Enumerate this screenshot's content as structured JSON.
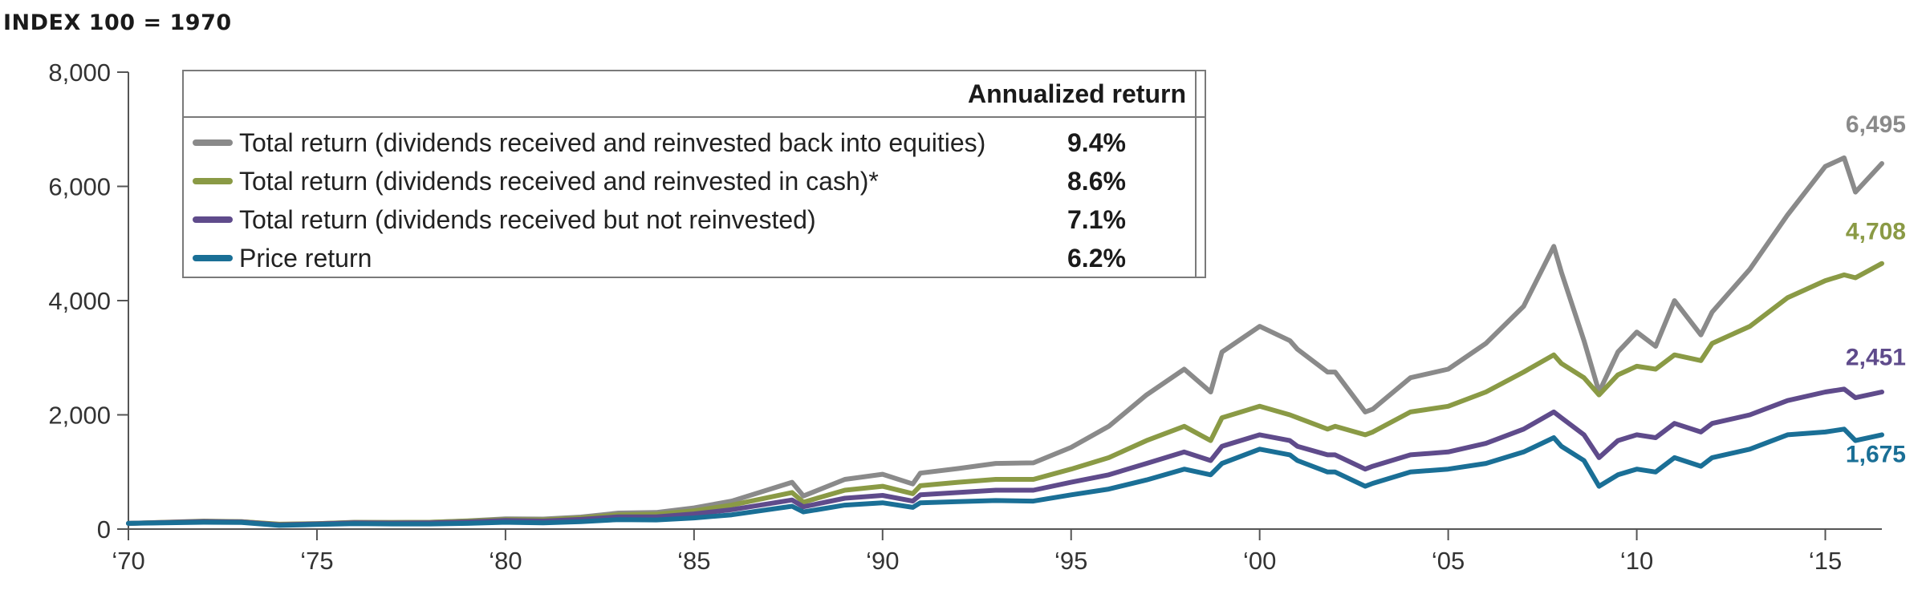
{
  "chart_data": {
    "type": "line",
    "title": "",
    "subtitle": "INDEX 100 = 1970",
    "xlabel": "",
    "ylabel": "",
    "xlim": [
      1970,
      2016.5
    ],
    "ylim": [
      0,
      8000
    ],
    "y_ticks": [
      0,
      2000,
      4000,
      6000,
      8000
    ],
    "y_tick_labels": [
      "0",
      "2,000",
      "4,000",
      "6,000",
      "8,000"
    ],
    "x_ticks": [
      1970,
      1975,
      1980,
      1985,
      1990,
      1995,
      2000,
      2005,
      2010,
      2015
    ],
    "x_tick_labels": [
      "‘70",
      "‘75",
      "‘80",
      "‘85",
      "‘90",
      "‘95",
      "‘00",
      "‘05",
      "‘10",
      "‘15"
    ],
    "grid": false,
    "legend": {
      "placement": "top-left",
      "header": "Annualized return"
    },
    "series": [
      {
        "name": "Total return (dividends received and reinvested back into equities)",
        "annualized_return": "9.4%",
        "end_label": "6,495",
        "color": "#8a8a8a",
        "points": [
          [
            1970,
            100
          ],
          [
            1972,
            140
          ],
          [
            1973,
            130
          ],
          [
            1974,
            80
          ],
          [
            1975,
            95
          ],
          [
            1976,
            120
          ],
          [
            1977,
            115
          ],
          [
            1978,
            120
          ],
          [
            1979,
            145
          ],
          [
            1980,
            180
          ],
          [
            1981,
            175
          ],
          [
            1982,
            210
          ],
          [
            1983,
            280
          ],
          [
            1984,
            290
          ],
          [
            1985,
            370
          ],
          [
            1986,
            490
          ],
          [
            1987.6,
            820
          ],
          [
            1987.9,
            580
          ],
          [
            1989,
            870
          ],
          [
            1990,
            960
          ],
          [
            1990.8,
            790
          ],
          [
            1991,
            980
          ],
          [
            1992,
            1060
          ],
          [
            1993,
            1150
          ],
          [
            1994,
            1160
          ],
          [
            1995,
            1430
          ],
          [
            1996,
            1800
          ],
          [
            1997,
            2350
          ],
          [
            1998,
            2800
          ],
          [
            1998.7,
            2400
          ],
          [
            1999,
            3100
          ],
          [
            2000,
            3550
          ],
          [
            2000.8,
            3300
          ],
          [
            2001,
            3150
          ],
          [
            2001.8,
            2750
          ],
          [
            2002,
            2750
          ],
          [
            2002.8,
            2050
          ],
          [
            2003,
            2100
          ],
          [
            2004,
            2650
          ],
          [
            2005,
            2800
          ],
          [
            2006,
            3250
          ],
          [
            2007,
            3900
          ],
          [
            2007.8,
            4950
          ],
          [
            2008,
            4500
          ],
          [
            2008.6,
            3300
          ],
          [
            2009,
            2400
          ],
          [
            2009.5,
            3100
          ],
          [
            2010,
            3450
          ],
          [
            2010.5,
            3200
          ],
          [
            2011,
            4000
          ],
          [
            2011.7,
            3400
          ],
          [
            2012,
            3800
          ],
          [
            2013,
            4550
          ],
          [
            2014,
            5500
          ],
          [
            2015,
            6350
          ],
          [
            2015.5,
            6500
          ],
          [
            2015.8,
            5900
          ],
          [
            2016.5,
            6400
          ]
        ]
      },
      {
        "name": "Total return (dividends received and reinvested in cash)*",
        "annualized_return": "8.6%",
        "end_label": "4,708",
        "color": "#8a9a45",
        "points": [
          [
            1970,
            100
          ],
          [
            1972,
            135
          ],
          [
            1973,
            130
          ],
          [
            1974,
            85
          ],
          [
            1975,
            95
          ],
          [
            1976,
            115
          ],
          [
            1977,
            115
          ],
          [
            1978,
            120
          ],
          [
            1979,
            140
          ],
          [
            1980,
            165
          ],
          [
            1981,
            160
          ],
          [
            1982,
            195
          ],
          [
            1983,
            250
          ],
          [
            1984,
            260
          ],
          [
            1985,
            320
          ],
          [
            1986,
            420
          ],
          [
            1987.6,
            640
          ],
          [
            1987.9,
            470
          ],
          [
            1989,
            680
          ],
          [
            1990,
            750
          ],
          [
            1990.8,
            620
          ],
          [
            1991,
            760
          ],
          [
            1992,
            820
          ],
          [
            1993,
            870
          ],
          [
            1994,
            870
          ],
          [
            1995,
            1050
          ],
          [
            1996,
            1250
          ],
          [
            1997,
            1550
          ],
          [
            1998,
            1800
          ],
          [
            1998.7,
            1550
          ],
          [
            1999,
            1950
          ],
          [
            2000,
            2150
          ],
          [
            2000.8,
            2000
          ],
          [
            2001,
            1950
          ],
          [
            2001.8,
            1750
          ],
          [
            2002,
            1800
          ],
          [
            2002.8,
            1650
          ],
          [
            2003,
            1700
          ],
          [
            2004,
            2050
          ],
          [
            2005,
            2150
          ],
          [
            2006,
            2400
          ],
          [
            2007,
            2750
          ],
          [
            2007.8,
            3050
          ],
          [
            2008,
            2900
          ],
          [
            2008.6,
            2650
          ],
          [
            2009,
            2350
          ],
          [
            2009.5,
            2700
          ],
          [
            2010,
            2850
          ],
          [
            2010.5,
            2800
          ],
          [
            2011,
            3050
          ],
          [
            2011.7,
            2950
          ],
          [
            2012,
            3250
          ],
          [
            2013,
            3550
          ],
          [
            2014,
            4050
          ],
          [
            2015,
            4350
          ],
          [
            2015.5,
            4450
          ],
          [
            2015.8,
            4400
          ],
          [
            2016.5,
            4650
          ]
        ]
      },
      {
        "name": "Total return (dividends received but not reinvested)",
        "annualized_return": "7.1%",
        "end_label": "2,451",
        "color": "#5f4b8b",
        "points": [
          [
            1970,
            100
          ],
          [
            1972,
            130
          ],
          [
            1973,
            125
          ],
          [
            1974,
            75
          ],
          [
            1975,
            90
          ],
          [
            1976,
            110
          ],
          [
            1977,
            105
          ],
          [
            1978,
            110
          ],
          [
            1979,
            125
          ],
          [
            1980,
            150
          ],
          [
            1981,
            140
          ],
          [
            1982,
            170
          ],
          [
            1983,
            215
          ],
          [
            1984,
            215
          ],
          [
            1985,
            265
          ],
          [
            1986,
            340
          ],
          [
            1987.6,
            510
          ],
          [
            1987.9,
            390
          ],
          [
            1989,
            540
          ],
          [
            1990,
            590
          ],
          [
            1990.8,
            490
          ],
          [
            1991,
            600
          ],
          [
            1992,
            640
          ],
          [
            1993,
            680
          ],
          [
            1994,
            680
          ],
          [
            1995,
            820
          ],
          [
            1996,
            950
          ],
          [
            1997,
            1150
          ],
          [
            1998,
            1350
          ],
          [
            1998.7,
            1200
          ],
          [
            1999,
            1450
          ],
          [
            2000,
            1650
          ],
          [
            2000.8,
            1550
          ],
          [
            2001,
            1450
          ],
          [
            2001.8,
            1300
          ],
          [
            2002,
            1300
          ],
          [
            2002.8,
            1050
          ],
          [
            2003,
            1100
          ],
          [
            2004,
            1300
          ],
          [
            2005,
            1350
          ],
          [
            2006,
            1500
          ],
          [
            2007,
            1750
          ],
          [
            2007.8,
            2050
          ],
          [
            2008,
            1950
          ],
          [
            2008.6,
            1650
          ],
          [
            2009,
            1250
          ],
          [
            2009.5,
            1550
          ],
          [
            2010,
            1650
          ],
          [
            2010.5,
            1600
          ],
          [
            2011,
            1850
          ],
          [
            2011.7,
            1700
          ],
          [
            2012,
            1850
          ],
          [
            2013,
            2000
          ],
          [
            2014,
            2250
          ],
          [
            2015,
            2400
          ],
          [
            2015.5,
            2450
          ],
          [
            2015.8,
            2300
          ],
          [
            2016.5,
            2400
          ]
        ]
      },
      {
        "name": "Price return",
        "annualized_return": "6.2%",
        "end_label": "1,675",
        "color": "#1a6f96",
        "points": [
          [
            1970,
            100
          ],
          [
            1972,
            120
          ],
          [
            1973,
            115
          ],
          [
            1974,
            65
          ],
          [
            1975,
            80
          ],
          [
            1976,
            95
          ],
          [
            1977,
            90
          ],
          [
            1978,
            90
          ],
          [
            1979,
            100
          ],
          [
            1980,
            120
          ],
          [
            1981,
            110
          ],
          [
            1982,
            130
          ],
          [
            1983,
            165
          ],
          [
            1984,
            160
          ],
          [
            1985,
            195
          ],
          [
            1986,
            250
          ],
          [
            1987.6,
            400
          ],
          [
            1987.9,
            300
          ],
          [
            1989,
            420
          ],
          [
            1990,
            460
          ],
          [
            1990.8,
            380
          ],
          [
            1991,
            460
          ],
          [
            1992,
            480
          ],
          [
            1993,
            500
          ],
          [
            1994,
            490
          ],
          [
            1995,
            600
          ],
          [
            1996,
            700
          ],
          [
            1997,
            860
          ],
          [
            1998,
            1050
          ],
          [
            1998.7,
            950
          ],
          [
            1999,
            1150
          ],
          [
            2000,
            1400
          ],
          [
            2000.8,
            1300
          ],
          [
            2001,
            1200
          ],
          [
            2001.8,
            1000
          ],
          [
            2002,
            1000
          ],
          [
            2002.8,
            750
          ],
          [
            2003,
            800
          ],
          [
            2004,
            1000
          ],
          [
            2005,
            1050
          ],
          [
            2006,
            1150
          ],
          [
            2007,
            1350
          ],
          [
            2007.8,
            1600
          ],
          [
            2008,
            1450
          ],
          [
            2008.6,
            1200
          ],
          [
            2009,
            750
          ],
          [
            2009.5,
            950
          ],
          [
            2010,
            1050
          ],
          [
            2010.5,
            1000
          ],
          [
            2011,
            1250
          ],
          [
            2011.7,
            1100
          ],
          [
            2012,
            1250
          ],
          [
            2013,
            1400
          ],
          [
            2014,
            1650
          ],
          [
            2015,
            1700
          ],
          [
            2015.5,
            1750
          ],
          [
            2015.8,
            1550
          ],
          [
            2016.5,
            1650
          ]
        ]
      }
    ]
  }
}
